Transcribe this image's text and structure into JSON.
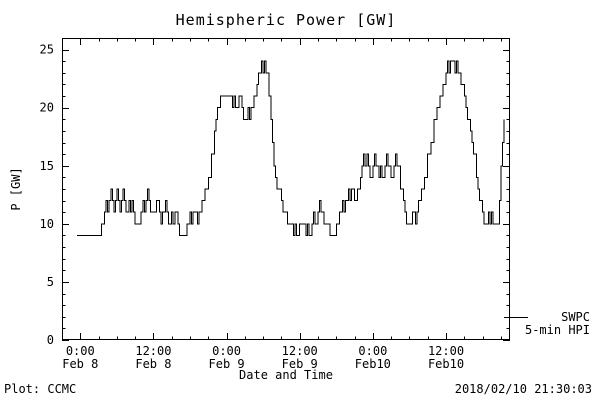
{
  "title": "Hemispheric Power [GW]",
  "colors": {
    "background": "#ffffff",
    "foreground": "#000000",
    "line": "#000000"
  },
  "legend": {
    "source": "SWPC",
    "series": "5-min HPI"
  },
  "footer": {
    "left": "Plot: CCMC",
    "right": "2018/02/10 21:30:03"
  },
  "chart_data": {
    "type": "line",
    "title": "Hemispheric Power [GW]",
    "xlabel": "Date and Time",
    "ylabel": "P [GW]",
    "ylim": [
      0,
      26
    ],
    "xlim_hours": [
      -3,
      70.5
    ],
    "grid": false,
    "legend_position": "outside-right-bottom",
    "y_ticks": [
      0,
      5,
      10,
      15,
      20,
      25
    ],
    "y_minor_step": 1,
    "x_minor_step_hours": 3,
    "x_ticks": [
      {
        "hour": 0,
        "time": "0:00",
        "date": "Feb 8"
      },
      {
        "hour": 12,
        "time": "12:00",
        "date": "Feb 8"
      },
      {
        "hour": 24,
        "time": "0:00",
        "date": "Feb 9"
      },
      {
        "hour": 36,
        "time": "12:00",
        "date": "Feb 9"
      },
      {
        "hour": 48,
        "time": "0:00",
        "date": "Feb10"
      },
      {
        "hour": 60,
        "time": "12:00",
        "date": "Feb10"
      }
    ],
    "series": [
      {
        "name": "SWPC 5-min HPI",
        "x_hours": [
          -0.5,
          0,
          0.5,
          1,
          1.5,
          2,
          2.5,
          3,
          3.5,
          4,
          4.25,
          4.5,
          4.75,
          5,
          5.25,
          5.5,
          5.75,
          6,
          6.25,
          6.5,
          6.75,
          7,
          7.25,
          7.5,
          8,
          8.25,
          8.5,
          8.75,
          9,
          9.5,
          10,
          10.25,
          10.5,
          10.75,
          11,
          11.25,
          11.5,
          12,
          12.5,
          13,
          13.25,
          13.5,
          14,
          14.25,
          14.5,
          15,
          15.25,
          15.5,
          16,
          16.25,
          17,
          17.5,
          18,
          18.25,
          18.5,
          19,
          19.25,
          19.5,
          20,
          20.5,
          21,
          21.5,
          22,
          22.25,
          22.5,
          23,
          23.5,
          24,
          24.5,
          25,
          25.25,
          25.5,
          26,
          26.5,
          26.75,
          27,
          27.5,
          27.75,
          28,
          28.5,
          29,
          29.25,
          29.5,
          29.75,
          30,
          30.25,
          30.5,
          31,
          31.25,
          31.5,
          31.75,
          32,
          32.25,
          32.5,
          33,
          33.25,
          33.5,
          34,
          34.5,
          35,
          35.25,
          35.5,
          36,
          36.5,
          37,
          37.25,
          37.5,
          38,
          38.25,
          38.5,
          39,
          39.25,
          39.5,
          40,
          40.5,
          41,
          41.5,
          42,
          42.5,
          43,
          43.25,
          43.5,
          44,
          44.25,
          44.5,
          45,
          45.5,
          46,
          46.25,
          46.5,
          46.75,
          47,
          47.25,
          47.5,
          48,
          48.25,
          48.5,
          49,
          49.25,
          49.5,
          50,
          50.25,
          50.5,
          51,
          51.5,
          51.75,
          52,
          52.5,
          53,
          53.25,
          53.5,
          54,
          54.5,
          55,
          55.25,
          55.5,
          56,
          56.5,
          57,
          57.5,
          58,
          58.5,
          59,
          59.5,
          60,
          60.25,
          60.5,
          60.75,
          61,
          61.5,
          61.75,
          62,
          62.5,
          63,
          63.25,
          63.5,
          64,
          64.25,
          64.5,
          65,
          65.25,
          65.5,
          66,
          66.25,
          66.5,
          67,
          67.25,
          67.5,
          67.75,
          68.25,
          68.5,
          68.75,
          69,
          69.25,
          69.5
        ],
        "values": [
          9,
          9,
          9,
          9,
          9,
          9,
          9,
          9,
          10,
          11,
          12,
          11,
          12,
          13,
          12,
          11,
          12,
          13,
          12,
          11,
          12,
          13,
          12,
          11,
          12,
          11,
          12,
          11,
          10,
          10,
          11,
          12,
          11,
          12,
          13,
          12,
          11,
          11,
          12,
          11,
          10,
          11,
          12,
          11,
          10,
          11,
          10,
          11,
          10,
          9,
          9,
          10,
          11,
          10,
          11,
          11,
          10,
          11,
          12,
          13,
          14,
          16,
          18,
          19,
          20,
          21,
          21,
          21,
          21,
          20,
          21,
          20,
          21,
          20,
          19,
          19,
          20,
          19,
          20,
          21,
          22,
          23,
          23,
          24,
          23,
          24,
          23,
          21,
          19,
          17,
          15,
          14,
          13,
          13,
          12,
          11,
          11,
          10,
          10,
          9,
          10,
          9,
          10,
          10,
          9,
          10,
          9,
          10,
          11,
          10,
          11,
          12,
          11,
          10,
          10,
          9,
          9,
          10,
          11,
          12,
          11,
          12,
          13,
          12,
          13,
          12,
          13,
          14,
          15,
          16,
          15,
          16,
          15,
          14,
          15,
          16,
          15,
          14,
          15,
          14,
          15,
          16,
          15,
          14,
          15,
          16,
          15,
          13,
          12,
          11,
          10,
          10,
          11,
          10,
          11,
          12,
          13,
          14,
          16,
          17,
          19,
          20,
          21,
          22,
          23,
          24,
          23,
          24,
          24,
          23,
          24,
          23,
          22,
          21,
          20,
          19,
          18,
          17,
          16,
          14,
          13,
          12,
          11,
          10,
          10,
          11,
          10,
          11,
          10,
          10,
          10,
          12,
          15,
          17,
          19
        ]
      }
    ]
  }
}
